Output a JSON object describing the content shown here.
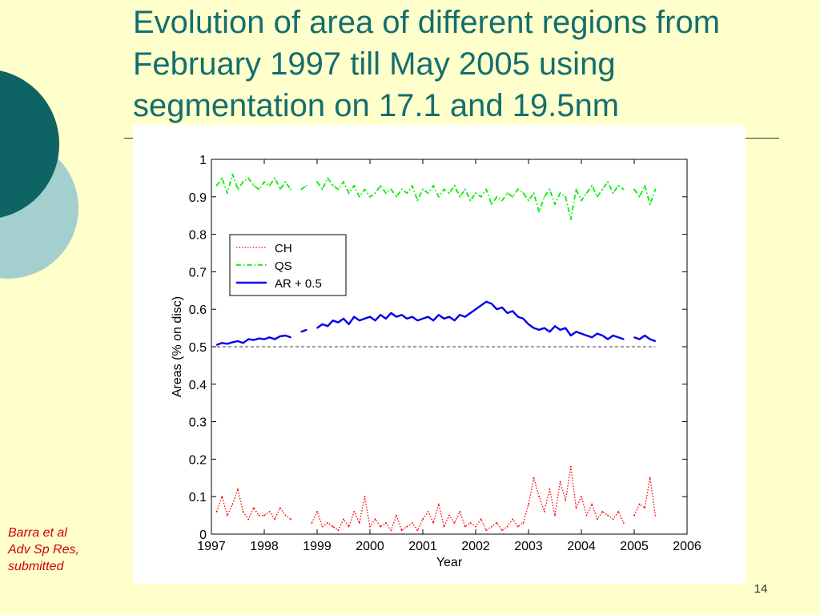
{
  "slide": {
    "title": "Evolution of area of different regions from February 1997 till May 2005 using segmentation on 17.1 and 19.5nm",
    "citation_lines": [
      "Barra et al",
      "Adv Sp Res,",
      "submitted"
    ],
    "page_number": "14",
    "colors": {
      "background": "#FFFFCC",
      "title": "#146E6E",
      "citation": "#CC0000",
      "decor_dark": "#0E6464",
      "decor_light": "#A4CFCF"
    }
  },
  "chart_data": {
    "type": "line",
    "title": "",
    "xlabel": "Year",
    "ylabel": "Areas (% on disc)",
    "xlim": [
      1997,
      2006
    ],
    "ylim": [
      0,
      1
    ],
    "xticks": [
      1997,
      1998,
      1999,
      2000,
      2001,
      2002,
      2003,
      2004,
      2005,
      2006
    ],
    "yticks": [
      0,
      0.1,
      0.2,
      0.3,
      0.4,
      0.5,
      0.6,
      0.7,
      0.8,
      0.9,
      1
    ],
    "ytick_labels": [
      "0",
      "0.1",
      "0.2",
      "0.3",
      "0.4",
      "0.5",
      "0.6",
      "0.7",
      "0.8",
      "0.9",
      "1"
    ],
    "grid": false,
    "legend_position": "upper-left",
    "reference_line": {
      "y": 0.5,
      "style": "dashed",
      "color": "#000000"
    },
    "series": [
      {
        "name": "CH",
        "color": "#FF0000",
        "style": "dotted",
        "x": [
          1997.1,
          1997.2,
          1997.3,
          1997.4,
          1997.5,
          1997.6,
          1997.7,
          1997.8,
          1997.9,
          1998.0,
          1998.1,
          1998.2,
          1998.3,
          1998.4,
          1998.5,
          1998.6,
          1998.7,
          1998.8,
          1998.9,
          1999.0,
          1999.1,
          1999.2,
          1999.3,
          1999.4,
          1999.5,
          1999.6,
          1999.7,
          1999.8,
          1999.9,
          2000.0,
          2000.1,
          2000.2,
          2000.3,
          2000.4,
          2000.5,
          2000.6,
          2000.7,
          2000.8,
          2000.9,
          2001.0,
          2001.1,
          2001.2,
          2001.3,
          2001.4,
          2001.5,
          2001.6,
          2001.7,
          2001.8,
          2001.9,
          2002.0,
          2002.1,
          2002.2,
          2002.3,
          2002.4,
          2002.5,
          2002.6,
          2002.7,
          2002.8,
          2002.9,
          2003.0,
          2003.1,
          2003.2,
          2003.3,
          2003.4,
          2003.5,
          2003.6,
          2003.7,
          2003.8,
          2003.9,
          2004.0,
          2004.1,
          2004.2,
          2004.3,
          2004.4,
          2004.5,
          2004.6,
          2004.7,
          2004.8,
          2004.9,
          2005.0,
          2005.1,
          2005.2,
          2005.3,
          2005.4
        ],
        "y": [
          0.06,
          0.1,
          0.05,
          0.08,
          0.12,
          0.06,
          0.04,
          0.07,
          0.05,
          0.05,
          0.06,
          0.04,
          0.07,
          0.05,
          0.04,
          null,
          null,
          null,
          0.03,
          0.06,
          0.02,
          0.03,
          0.02,
          0.01,
          0.04,
          0.02,
          0.06,
          0.03,
          0.1,
          0.02,
          0.04,
          0.02,
          0.03,
          0.01,
          0.05,
          0.01,
          0.02,
          0.03,
          0.01,
          0.04,
          0.06,
          0.03,
          0.08,
          0.02,
          0.05,
          0.03,
          0.06,
          0.02,
          0.03,
          0.02,
          0.04,
          0.01,
          0.02,
          0.03,
          0.01,
          0.02,
          0.04,
          0.02,
          0.03,
          0.08,
          0.15,
          0.1,
          0.06,
          0.12,
          0.05,
          0.14,
          0.09,
          0.18,
          0.07,
          0.1,
          0.05,
          0.08,
          0.04,
          0.06,
          0.05,
          0.04,
          0.06,
          0.03,
          null,
          0.05,
          0.08,
          0.07,
          0.15,
          0.05
        ]
      },
      {
        "name": "QS",
        "color": "#00EE00",
        "style": "dashdot",
        "x": [
          1997.1,
          1997.2,
          1997.3,
          1997.4,
          1997.5,
          1997.6,
          1997.7,
          1997.8,
          1997.9,
          1998.0,
          1998.1,
          1998.2,
          1998.3,
          1998.4,
          1998.5,
          1998.6,
          1998.7,
          1998.8,
          1998.9,
          1999.0,
          1999.1,
          1999.2,
          1999.3,
          1999.4,
          1999.5,
          1999.6,
          1999.7,
          1999.8,
          1999.9,
          2000.0,
          2000.1,
          2000.2,
          2000.3,
          2000.4,
          2000.5,
          2000.6,
          2000.7,
          2000.8,
          2000.9,
          2001.0,
          2001.1,
          2001.2,
          2001.3,
          2001.4,
          2001.5,
          2001.6,
          2001.7,
          2001.8,
          2001.9,
          2002.0,
          2002.1,
          2002.2,
          2002.3,
          2002.4,
          2002.5,
          2002.6,
          2002.7,
          2002.8,
          2002.9,
          2003.0,
          2003.1,
          2003.2,
          2003.3,
          2003.4,
          2003.5,
          2003.6,
          2003.7,
          2003.8,
          2003.9,
          2004.0,
          2004.1,
          2004.2,
          2004.3,
          2004.4,
          2004.5,
          2004.6,
          2004.7,
          2004.8,
          2004.9,
          2005.0,
          2005.1,
          2005.2,
          2005.3,
          2005.4
        ],
        "y": [
          0.93,
          0.95,
          0.91,
          0.96,
          0.92,
          0.94,
          0.95,
          0.93,
          0.92,
          0.94,
          0.93,
          0.95,
          0.92,
          0.94,
          0.92,
          null,
          0.92,
          0.93,
          null,
          0.94,
          0.92,
          0.95,
          0.93,
          0.92,
          0.94,
          0.91,
          0.93,
          0.9,
          0.92,
          0.9,
          0.91,
          0.93,
          0.91,
          0.92,
          0.9,
          0.92,
          0.91,
          0.93,
          0.89,
          0.92,
          0.91,
          0.93,
          0.9,
          0.92,
          0.91,
          0.93,
          0.9,
          0.92,
          0.89,
          0.91,
          0.9,
          0.92,
          0.88,
          0.9,
          0.89,
          0.91,
          0.9,
          0.92,
          0.91,
          0.89,
          0.91,
          0.86,
          0.9,
          0.92,
          0.88,
          0.91,
          0.9,
          0.84,
          0.92,
          0.89,
          0.91,
          0.93,
          0.9,
          0.92,
          0.94,
          0.91,
          0.93,
          0.92,
          null,
          0.92,
          0.9,
          0.93,
          0.88,
          0.92
        ]
      },
      {
        "name": "AR + 0.5",
        "color": "#0000EE",
        "style": "solid",
        "x": [
          1997.1,
          1997.2,
          1997.3,
          1997.4,
          1997.5,
          1997.6,
          1997.7,
          1997.8,
          1997.9,
          1998.0,
          1998.1,
          1998.2,
          1998.3,
          1998.4,
          1998.5,
          1998.6,
          1998.7,
          1998.8,
          1998.9,
          1999.0,
          1999.1,
          1999.2,
          1999.3,
          1999.4,
          1999.5,
          1999.6,
          1999.7,
          1999.8,
          1999.9,
          2000.0,
          2000.1,
          2000.2,
          2000.3,
          2000.4,
          2000.5,
          2000.6,
          2000.7,
          2000.8,
          2000.9,
          2001.0,
          2001.1,
          2001.2,
          2001.3,
          2001.4,
          2001.5,
          2001.6,
          2001.7,
          2001.8,
          2001.9,
          2002.0,
          2002.1,
          2002.2,
          2002.3,
          2002.4,
          2002.5,
          2002.6,
          2002.7,
          2002.8,
          2002.9,
          2003.0,
          2003.1,
          2003.2,
          2003.3,
          2003.4,
          2003.5,
          2003.6,
          2003.7,
          2003.8,
          2003.9,
          2004.0,
          2004.1,
          2004.2,
          2004.3,
          2004.4,
          2004.5,
          2004.6,
          2004.7,
          2004.8,
          2004.9,
          2005.0,
          2005.1,
          2005.2,
          2005.3,
          2005.4
        ],
        "y": [
          0.505,
          0.51,
          0.508,
          0.512,
          0.515,
          0.51,
          0.52,
          0.518,
          0.522,
          0.52,
          0.525,
          0.52,
          0.528,
          0.53,
          0.525,
          null,
          0.54,
          0.545,
          null,
          0.55,
          0.56,
          0.555,
          0.57,
          0.565,
          0.575,
          0.56,
          0.58,
          0.57,
          0.575,
          0.58,
          0.57,
          0.585,
          0.575,
          0.59,
          0.58,
          0.585,
          0.575,
          0.58,
          0.57,
          0.575,
          0.58,
          0.57,
          0.585,
          0.575,
          0.58,
          0.57,
          0.585,
          0.58,
          0.59,
          0.6,
          0.61,
          0.62,
          0.615,
          0.6,
          0.605,
          0.59,
          0.595,
          0.58,
          0.575,
          0.56,
          0.55,
          0.545,
          0.55,
          0.54,
          0.555,
          0.545,
          0.55,
          0.53,
          0.54,
          0.535,
          0.53,
          0.525,
          0.535,
          0.53,
          0.52,
          0.53,
          0.525,
          0.52,
          null,
          0.525,
          0.52,
          0.53,
          0.52,
          0.515
        ]
      }
    ]
  }
}
